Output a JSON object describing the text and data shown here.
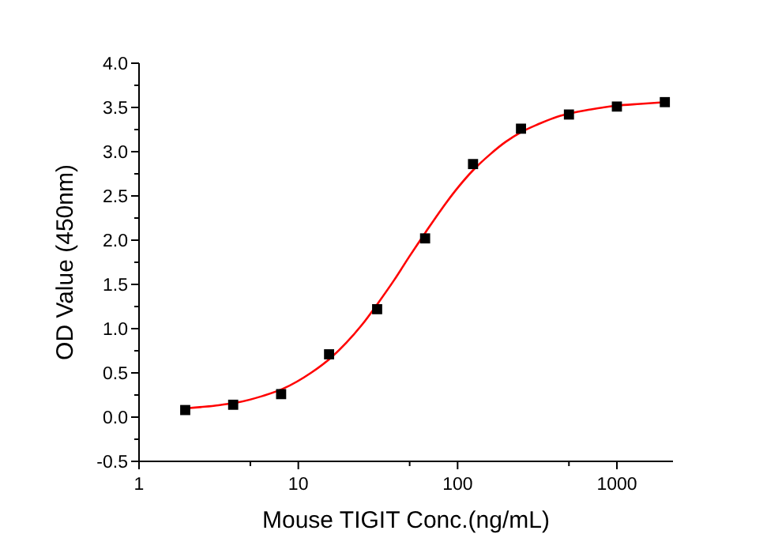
{
  "chart_data": {
    "type": "scatter",
    "xlabel": "Mouse TIGIT Conc.(ng/mL)",
    "ylabel": "OD Value (450nm)",
    "log": "x",
    "grid": false,
    "xlim": [
      1,
      2250
    ],
    "xticks": [
      1,
      {
        "value": 5,
        "label": null
      },
      10,
      {
        "value": 50,
        "label": null
      },
      100,
      {
        "value": 500,
        "label": null
      },
      1000
    ],
    "ylim": [
      -0.5,
      4.0
    ],
    "yticks": [
      {
        "value": -0.5,
        "label": "-0.5"
      },
      {
        "value": -0.25,
        "label": null
      },
      {
        "value": 0,
        "label": "0.0"
      },
      {
        "value": 0.25,
        "label": null
      },
      {
        "value": 0.5,
        "label": "0.5"
      },
      {
        "value": 0.75,
        "label": null
      },
      {
        "value": 1,
        "label": "1.0"
      },
      {
        "value": 1.25,
        "label": null
      },
      {
        "value": 1.5,
        "label": "1.5"
      },
      {
        "value": 1.75,
        "label": null
      },
      {
        "value": 2,
        "label": "2.0"
      },
      {
        "value": 2.25,
        "label": null
      },
      {
        "value": 2.5,
        "label": "2.5"
      },
      {
        "value": 2.75,
        "label": null
      },
      {
        "value": 3,
        "label": "3.0"
      },
      {
        "value": 3.25,
        "label": null
      },
      {
        "value": 3.5,
        "label": "3.5"
      },
      {
        "value": 3.75,
        "label": null
      },
      {
        "value": 4,
        "label": "4.0"
      }
    ],
    "series": [
      {
        "type": "line",
        "color": "#ff0000",
        "marker": "none",
        "line_style": "solid",
        "x": [
          2,
          3,
          4,
          6,
          8,
          12,
          16,
          20,
          25,
          32,
          40,
          50,
          63,
          80,
          100,
          125,
          160,
          200,
          250,
          320,
          400,
          500,
          700,
          1000,
          1400,
          2000
        ],
        "values": [
          0.1,
          0.13,
          0.16,
          0.24,
          0.32,
          0.5,
          0.67,
          0.84,
          1.04,
          1.3,
          1.55,
          1.82,
          2.09,
          2.36,
          2.59,
          2.79,
          2.97,
          3.11,
          3.22,
          3.31,
          3.38,
          3.43,
          3.48,
          3.52,
          3.54,
          3.56
        ]
      },
      {
        "color": "#000000",
        "marker": "square",
        "x": [
          1.95,
          3.9,
          7.8,
          15.6,
          31.25,
          62.5,
          125,
          250,
          500,
          1000,
          2000
        ],
        "values": [
          0.08,
          0.14,
          0.26,
          0.71,
          1.22,
          2.02,
          2.86,
          3.26,
          3.42,
          3.51,
          3.56
        ]
      }
    ]
  }
}
